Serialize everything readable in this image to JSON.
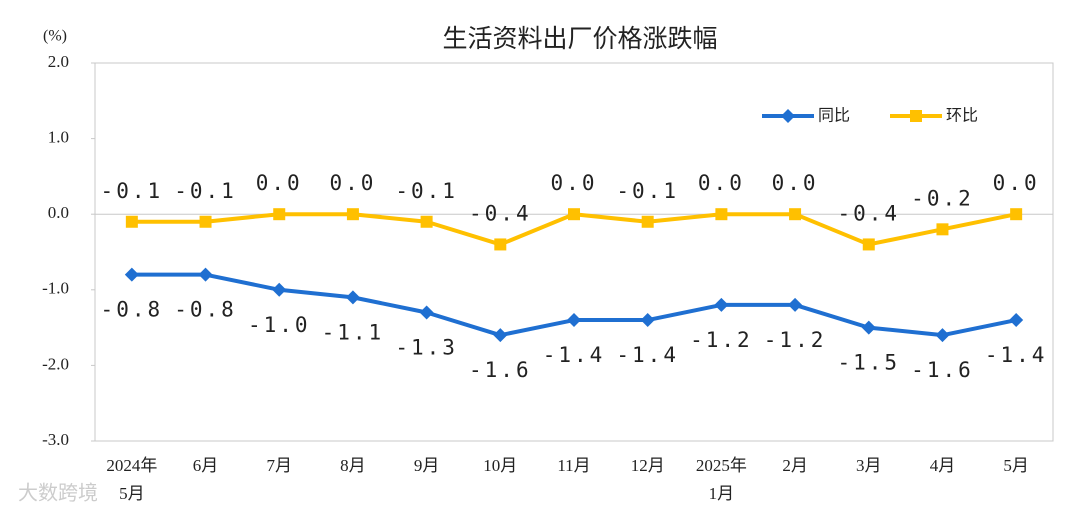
{
  "chart_data": {
    "type": "line",
    "title": "生活资料出厂价格涨跌幅",
    "y_unit": "(%)",
    "categories": [
      "2024年5月",
      "6月",
      "7月",
      "8月",
      "9月",
      "10月",
      "11月",
      "12月",
      "2025年1月",
      "2月",
      "3月",
      "4月",
      "5月"
    ],
    "series": [
      {
        "name": "同比",
        "color": "#1f6fd1",
        "marker": "diamond",
        "values": [
          -0.8,
          -0.8,
          -1.0,
          -1.1,
          -1.3,
          -1.6,
          -1.4,
          -1.4,
          -1.2,
          -1.2,
          -1.5,
          -1.6,
          -1.4
        ],
        "value_labels": [
          "-0.8",
          "-0.8",
          "-1.0",
          "-1.1",
          "-1.3",
          "-1.6",
          "-1.4",
          "-1.4",
          "-1.2",
          "-1.2",
          "-1.5",
          "-1.6",
          "-1.4"
        ],
        "label_position": "below"
      },
      {
        "name": "环比",
        "color": "#ffc000",
        "marker": "square",
        "values": [
          -0.1,
          -0.1,
          0,
          0,
          -0.1,
          -0.4,
          0,
          -0.1,
          0,
          0,
          -0.4,
          -0.2,
          0
        ],
        "value_labels": [
          "-0.1",
          "-0.1",
          "0.0",
          "0.0",
          "-0.1",
          "-0.4",
          "0.0",
          "-0.1",
          "0.0",
          "0.0",
          "-0.4",
          "-0.2",
          "0.0"
        ],
        "label_position": "above"
      }
    ],
    "ylim": [
      -3,
      2
    ],
    "yticks": [
      {
        "value": 2,
        "label": "2.0"
      },
      {
        "value": 1,
        "label": "1.0"
      },
      {
        "value": 0,
        "label": "0.0"
      },
      {
        "value": -1,
        "label": "-1.0"
      },
      {
        "value": -2,
        "label": "-2.0"
      },
      {
        "value": -3,
        "label": "-3.0"
      }
    ],
    "legend": "top-right",
    "grid": false,
    "watermark": "大数跨境"
  }
}
